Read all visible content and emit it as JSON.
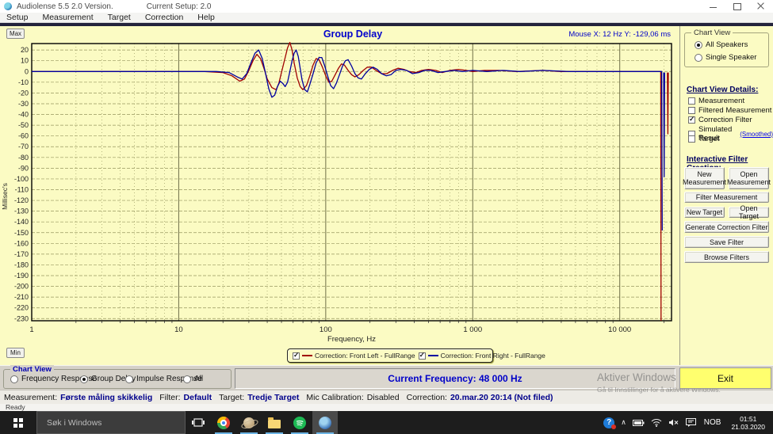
{
  "window": {
    "title": "Audiolense 5.5 2.0 Version.",
    "setup_label": "Current Setup: 2.0"
  },
  "menu": [
    "Setup",
    "Measurement",
    "Target",
    "Correction",
    "Help"
  ],
  "chart": {
    "title": "Group Delay",
    "mouse_readout": "Mouse X: 12 Hz   Y: -129,06 ms",
    "max_button": "Max",
    "min_button": "Min"
  },
  "chart_data": {
    "type": "line",
    "title": "Group Delay",
    "xlabel": "Frequency, Hz",
    "ylabel": "Millisec's",
    "x_scale": "log",
    "xlim": [
      1,
      22500
    ],
    "ylim": [
      -232,
      26
    ],
    "x_ticks": [
      {
        "v": 1,
        "label": "1"
      },
      {
        "v": 10,
        "label": "10"
      },
      {
        "v": 100,
        "label": "100"
      },
      {
        "v": 1000,
        "label": "1 000"
      },
      {
        "v": 10000,
        "label": "10 000"
      }
    ],
    "y_ticks": {
      "start": 20,
      "step": -10,
      "count": 26
    },
    "grid": true,
    "legend_position": "bottom",
    "series": [
      {
        "name": "Correction: Front Left - FullRange",
        "color": "#A00000",
        "segments": [
          [
            [
              1,
              0
            ],
            [
              15,
              0
            ],
            [
              20,
              -1
            ],
            [
              23,
              -4
            ],
            [
              26,
              -9
            ],
            [
              28,
              -7
            ],
            [
              30,
              1
            ],
            [
              32,
              10
            ],
            [
              34,
              16
            ],
            [
              36,
              12
            ],
            [
              38,
              3
            ],
            [
              40,
              -7
            ],
            [
              43,
              -15
            ],
            [
              46,
              -17
            ],
            [
              48,
              -11
            ],
            [
              50,
              -1
            ],
            [
              53,
              13
            ],
            [
              55,
              22
            ],
            [
              57,
              27
            ],
            [
              59,
              20
            ],
            [
              61,
              8
            ],
            [
              64,
              -6
            ],
            [
              67,
              -14
            ],
            [
              70,
              -17
            ],
            [
              74,
              -13
            ],
            [
              78,
              -4
            ],
            [
              82,
              6
            ],
            [
              86,
              12
            ],
            [
              90,
              11
            ],
            [
              95,
              4
            ],
            [
              100,
              -4
            ],
            [
              105,
              -10
            ],
            [
              110,
              -9
            ],
            [
              116,
              -3
            ],
            [
              122,
              3
            ],
            [
              128,
              7
            ],
            [
              134,
              6
            ],
            [
              142,
              1
            ],
            [
              150,
              -3
            ],
            [
              158,
              -5
            ],
            [
              168,
              -3
            ],
            [
              180,
              1
            ],
            [
              192,
              4
            ],
            [
              205,
              4
            ],
            [
              220,
              1
            ],
            [
              240,
              -2
            ],
            [
              260,
              -2
            ],
            [
              285,
              1
            ],
            [
              310,
              3
            ],
            [
              340,
              2
            ],
            [
              370,
              0
            ],
            [
              410,
              -1
            ],
            [
              450,
              1
            ],
            [
              500,
              2
            ],
            [
              560,
              1
            ],
            [
              620,
              -1
            ],
            [
              700,
              1
            ],
            [
              800,
              2
            ],
            [
              900,
              1
            ],
            [
              1000,
              0
            ],
            [
              1200,
              1
            ],
            [
              1500,
              1
            ],
            [
              2000,
              0
            ],
            [
              3000,
              1
            ],
            [
              4000,
              0
            ],
            [
              6000,
              0
            ],
            [
              9000,
              0
            ],
            [
              13000,
              0
            ],
            [
              17000,
              0
            ],
            [
              19000,
              0
            ],
            [
              19100,
              -232
            ]
          ],
          [
            [
              21100,
              -1
            ],
            [
              21250,
              -58
            ],
            [
              21400,
              -1
            ]
          ]
        ]
      },
      {
        "name": "Correction: Front Right - FullRange",
        "color": "#0000A0",
        "segments": [
          [
            [
              1,
              0
            ],
            [
              18,
              0
            ],
            [
              22,
              -1
            ],
            [
              25,
              -5
            ],
            [
              27,
              -7
            ],
            [
              29,
              -2
            ],
            [
              31,
              8
            ],
            [
              33,
              17
            ],
            [
              35,
              20
            ],
            [
              37,
              12
            ],
            [
              39,
              -2
            ],
            [
              41,
              -16
            ],
            [
              43,
              -24
            ],
            [
              45,
              -22
            ],
            [
              47,
              -14
            ],
            [
              49,
              -9
            ],
            [
              51,
              -11
            ],
            [
              53,
              -14
            ],
            [
              55,
              -10
            ],
            [
              57,
              0
            ],
            [
              59,
              10
            ],
            [
              61,
              17
            ],
            [
              63,
              20
            ],
            [
              65,
              14
            ],
            [
              67,
              3
            ],
            [
              69,
              -8
            ],
            [
              72,
              -17
            ],
            [
              75,
              -19
            ],
            [
              78,
              -12
            ],
            [
              82,
              -2
            ],
            [
              86,
              8
            ],
            [
              90,
              13
            ],
            [
              94,
              13
            ],
            [
              98,
              6
            ],
            [
              103,
              -4
            ],
            [
              108,
              -13
            ],
            [
              113,
              -16
            ],
            [
              118,
              -11
            ],
            [
              124,
              -3
            ],
            [
              130,
              5
            ],
            [
              136,
              10
            ],
            [
              142,
              11
            ],
            [
              150,
              5
            ],
            [
              158,
              -2
            ],
            [
              166,
              -6
            ],
            [
              175,
              -7
            ],
            [
              186,
              -2
            ],
            [
              198,
              2
            ],
            [
              210,
              4
            ],
            [
              224,
              2
            ],
            [
              240,
              -2
            ],
            [
              258,
              -4
            ],
            [
              278,
              -3
            ],
            [
              300,
              1
            ],
            [
              325,
              2
            ],
            [
              355,
              1
            ],
            [
              390,
              -2
            ],
            [
              430,
              -1
            ],
            [
              470,
              1
            ],
            [
              520,
              1
            ],
            [
              580,
              -1
            ],
            [
              650,
              0
            ],
            [
              750,
              1
            ],
            [
              850,
              0
            ],
            [
              1000,
              1
            ],
            [
              1250,
              0
            ],
            [
              1600,
              1
            ],
            [
              2100,
              0
            ],
            [
              3000,
              1
            ],
            [
              4500,
              0
            ],
            [
              7000,
              0
            ],
            [
              10000,
              0
            ],
            [
              14000,
              0
            ],
            [
              18000,
              0
            ],
            [
              19300,
              0
            ],
            [
              19450,
              -148
            ]
          ],
          [
            [
              19900,
              -1
            ],
            [
              20050,
              -98
            ],
            [
              20200,
              -1
            ]
          ]
        ]
      }
    ]
  },
  "legend": {
    "items": [
      {
        "label": "Correction: Front Left - FullRange",
        "checked": true,
        "color": "#A00000"
      },
      {
        "label": "Correction: Front Right - FullRange",
        "checked": true,
        "color": "#0000A0"
      }
    ]
  },
  "right_panel": {
    "chart_view": {
      "title": "Chart View",
      "options": [
        {
          "label": "All Speakers",
          "selected": true
        },
        {
          "label": "Single Speaker",
          "selected": false
        }
      ]
    },
    "details": {
      "title": "Chart View Details:",
      "items": [
        {
          "label": "Measurement",
          "checked": false
        },
        {
          "label": "Filtered Measurement",
          "checked": false
        },
        {
          "label": "Correction Filter",
          "checked": true
        },
        {
          "label": "Simulated Result",
          "checked": false,
          "link": "(Smoothed)"
        },
        {
          "label": "Target",
          "checked": false
        }
      ]
    },
    "filter_creation": {
      "title": "Interactive Filter Creation:",
      "buttons": [
        "New Measurement",
        "Open Measurement",
        "Filter Measurement",
        "New Target",
        "Open Target",
        "Generate Correction Filter",
        "Save Filter",
        "Browse Filters"
      ]
    }
  },
  "bottom": {
    "chart_view": {
      "title": "Chart View",
      "options": [
        {
          "label": "Frequency Response",
          "selected": false
        },
        {
          "label": "Group Delay",
          "selected": true
        },
        {
          "label": "Impulse Response",
          "selected": false
        },
        {
          "label": "All",
          "selected": false
        }
      ]
    },
    "current_frequency": "Current Frequency: 48 000 Hz",
    "exit_label": "Exit",
    "watermark_line1": "Aktiver Windows",
    "watermark_line2": "Gå til Innstillinger for å aktivere Windows."
  },
  "status_bar": {
    "segments": [
      {
        "label": "Measurement:",
        "value": "Første måling skikkelig"
      },
      {
        "label": "Filter:",
        "value": "Default"
      },
      {
        "label": "Target:",
        "value": "Tredje Target"
      },
      {
        "label": "Mic Calibration:",
        "value": "Disabled"
      },
      {
        "label": "Correction:",
        "value": "20.mar.20 20:14 (Not filed)"
      }
    ],
    "ready": "Ready"
  },
  "taskbar": {
    "search_placeholder": "Søk i Windows",
    "language": "NOB",
    "time": "01:51",
    "date": "21.03.2020"
  },
  "colors": {
    "panel_yellow": "#FBFBC3",
    "accent_blue": "#0000C8",
    "curve_left": "#A00000",
    "curve_right": "#0000A0",
    "exit_yellow": "#FFFF6E",
    "taskbar_dark": "#1D1D1D"
  }
}
